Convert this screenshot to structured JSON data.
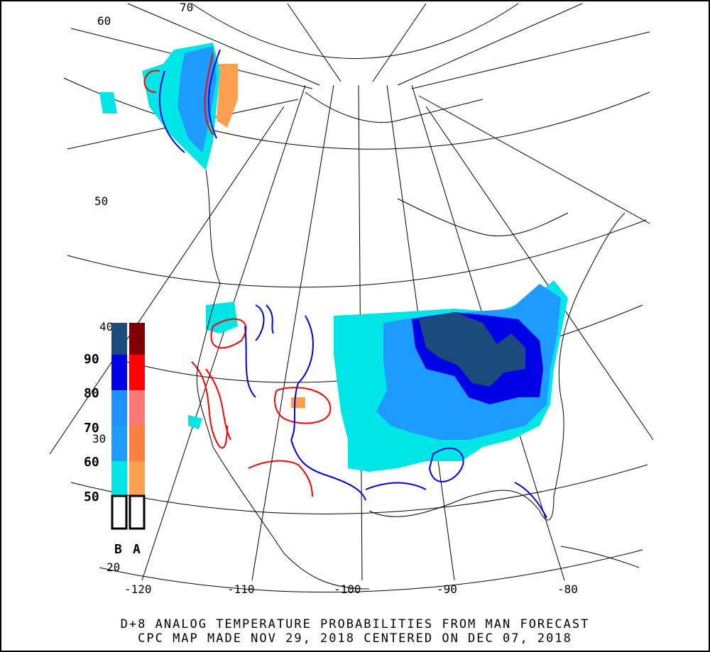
{
  "map": {
    "title_line1": "D+8 ANALOG TEMPERATURE PROBABILITIES FROM MAN FORECAST",
    "title_line2": "CPC MAP MADE NOV 29, 2018 CENTERED ON DEC 07, 2018",
    "longitude_labels": [
      "-120",
      "-110",
      "-100",
      "-90",
      "-80"
    ],
    "latitude_labels": [
      "20",
      "30",
      "40",
      "50",
      "60",
      "70"
    ],
    "colors": {
      "below_50": "#00e6e6",
      "below_60": "#1e9bff",
      "below_70": "#1e90ff",
      "below_80": "#0000e6",
      "below_90": "#1a4b7a",
      "above_50": "#ffa050",
      "above_60": "#ff8040",
      "above_70": "#ff7878",
      "above_80": "#ff0000",
      "above_90": "#800000"
    }
  },
  "legend": {
    "ticks": [
      "90",
      "80",
      "70",
      "60",
      "50"
    ],
    "below_label": "B",
    "above_label": "A"
  }
}
